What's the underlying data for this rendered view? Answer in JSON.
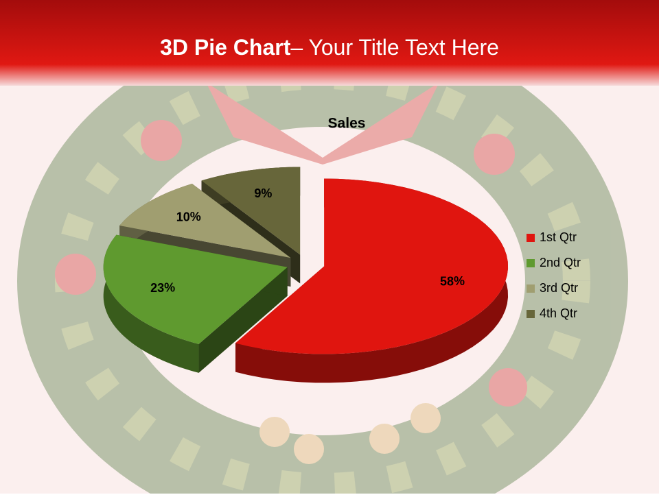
{
  "slide": {
    "title_bold": "3D Pie Chart",
    "title_rest": "– Your Title Text Here"
  },
  "chart_data": {
    "type": "pie",
    "title": "Sales",
    "categories": [
      "1st Qtr",
      "2nd Qtr",
      "3rd Qtr",
      "4th Qtr"
    ],
    "values": [
      58,
      23,
      10,
      9
    ],
    "colors": [
      "#e0150f",
      "#5f9a2f",
      "#a09e70",
      "#67663a"
    ],
    "legend": "right"
  }
}
